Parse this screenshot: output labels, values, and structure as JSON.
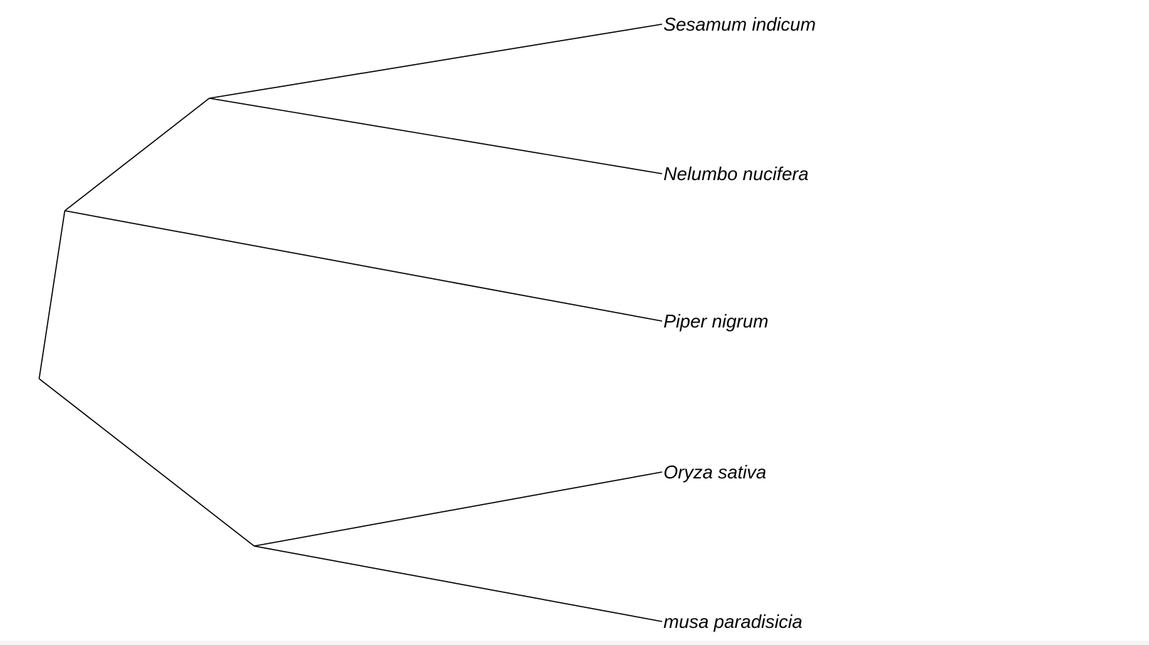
{
  "tree": {
    "tips": [
      {
        "id": "sesamum",
        "label": "Sesamum indicum"
      },
      {
        "id": "nelumbo",
        "label": "Nelumbo nucifera"
      },
      {
        "id": "piper",
        "label": "Piper nigrum"
      },
      {
        "id": "oryza",
        "label": "Oryza sativa"
      },
      {
        "id": "musa",
        "label": "musa paradisicia"
      }
    ],
    "clades": [
      {
        "id": "clade-sesamum-nelumbo",
        "children": [
          "sesamum",
          "nelumbo"
        ]
      },
      {
        "id": "clade-eudicots-piper",
        "children": [
          "clade-sesamum-nelumbo",
          "piper"
        ]
      },
      {
        "id": "clade-oryza-musa",
        "children": [
          "oryza",
          "musa"
        ]
      },
      {
        "id": "root",
        "children": [
          "clade-eudicots-piper",
          "clade-oryza-musa"
        ]
      }
    ],
    "line_color": "#000000",
    "label_color": "#000000"
  }
}
